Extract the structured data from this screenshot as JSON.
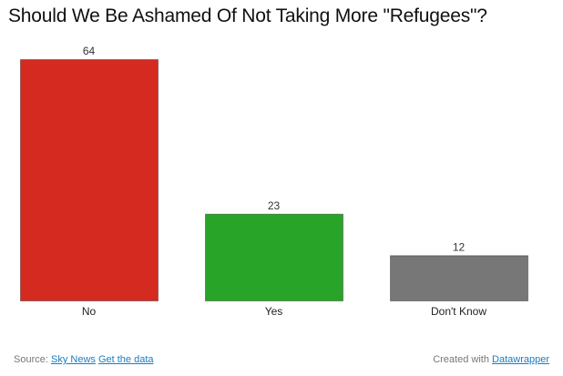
{
  "chart_data": {
    "type": "bar",
    "title": "Should We Be Ashamed Of Not Taking More \"Refugees\"?",
    "categories": [
      "No",
      "Yes",
      "Don't Know"
    ],
    "values": [
      64,
      23,
      12
    ],
    "colors": [
      "#d42a20",
      "#28a428",
      "#777777"
    ],
    "ylim": [
      0,
      64
    ],
    "grid": false,
    "legend": "none",
    "xlabel": "",
    "ylabel": ""
  },
  "footer": {
    "source_prefix": "Source:",
    "source_link": "Sky News",
    "data_link": "Get the data",
    "created_prefix": "Created with",
    "created_link": "Datawrapper"
  }
}
